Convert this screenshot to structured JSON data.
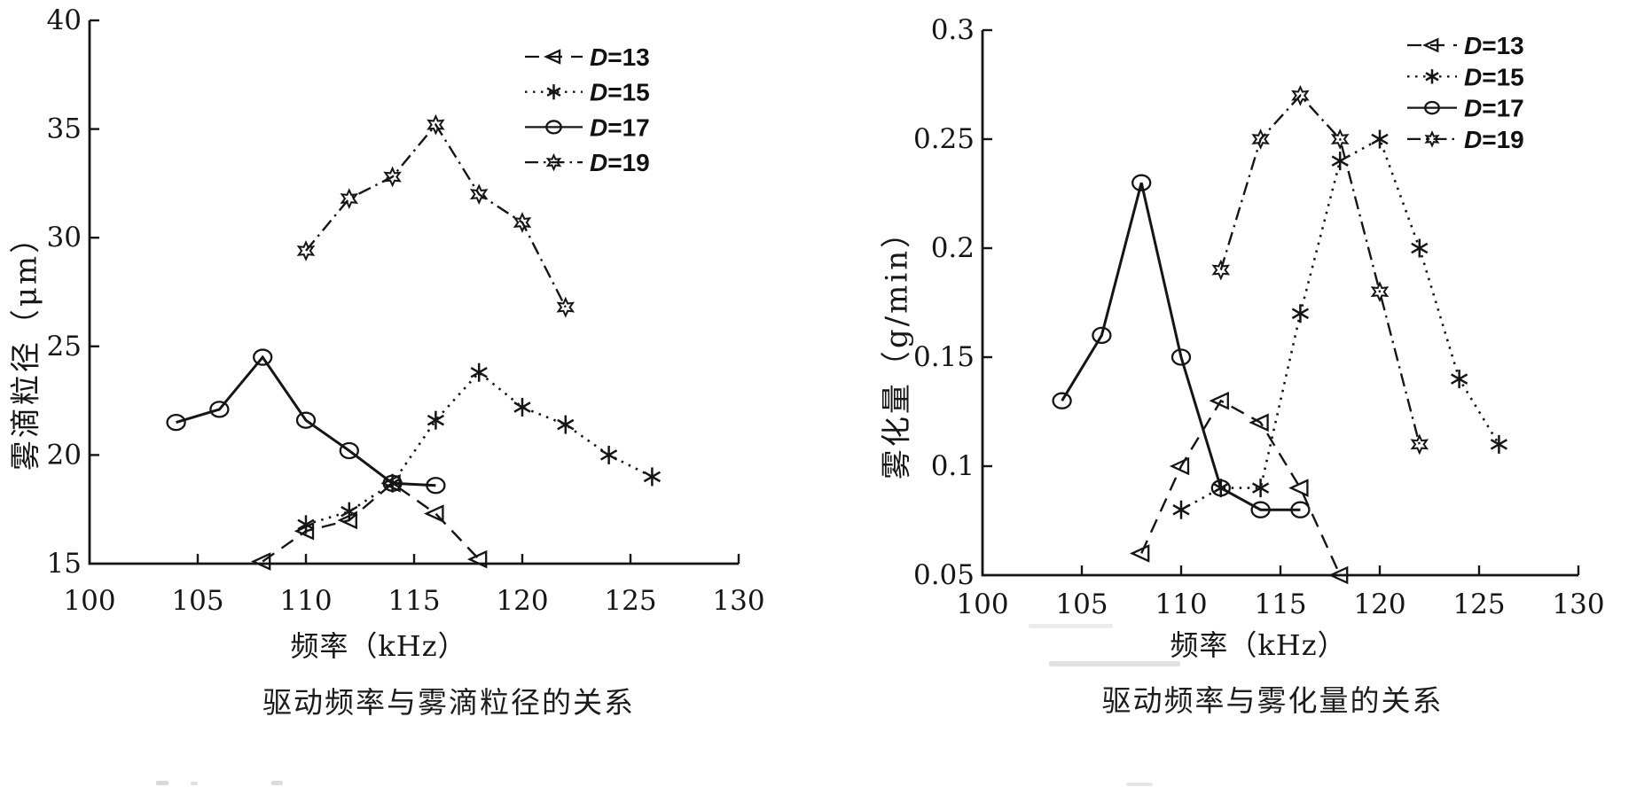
{
  "page": {
    "background": "#ffffff",
    "ink_color": "#151515"
  },
  "chart_data": [
    {
      "type": "line",
      "title": "驱动频率与雾滴粒径的关系",
      "xlabel": "频率（kHz）",
      "ylabel": "雾滴粒径（μm）",
      "xlim": [
        100,
        130
      ],
      "ylim": [
        15,
        40
      ],
      "x_ticks": [
        "100",
        "105",
        "110",
        "115",
        "120",
        "125",
        "130"
      ],
      "y_ticks": [
        "15",
        "20",
        "25",
        "30",
        "35",
        "40"
      ],
      "grid": false,
      "legend_position": "top-right-inside",
      "series": [
        {
          "name": "D=13",
          "line": "dashed",
          "marker": "triangle-left",
          "x": [
            108,
            110,
            112,
            114,
            116,
            118
          ],
          "y": [
            15.1,
            16.5,
            17.0,
            18.7,
            17.3,
            15.2
          ]
        },
        {
          "name": "D=15",
          "line": "dotted",
          "marker": "asterisk",
          "x": [
            110,
            112,
            114,
            116,
            118,
            120,
            122,
            124,
            126
          ],
          "y": [
            16.8,
            17.4,
            18.7,
            21.6,
            23.8,
            22.2,
            21.4,
            20.0,
            19.0
          ]
        },
        {
          "name": "D=17",
          "line": "solid",
          "marker": "circle",
          "x": [
            104,
            106,
            108,
            110,
            112,
            114,
            116
          ],
          "y": [
            21.5,
            22.1,
            24.5,
            21.6,
            20.2,
            18.7,
            18.6
          ]
        },
        {
          "name": "D=19",
          "line": "dash-dot",
          "marker": "hexagram",
          "x": [
            110,
            112,
            114,
            116,
            118,
            120,
            122
          ],
          "y": [
            29.4,
            31.8,
            32.8,
            35.2,
            32.0,
            30.7,
            26.8
          ]
        }
      ]
    },
    {
      "type": "line",
      "title": "驱动频率与雾化量的关系",
      "xlabel": "频率（kHz）",
      "ylabel": "雾化量（g/min）",
      "xlim": [
        100,
        130
      ],
      "ylim": [
        0.05,
        0.3
      ],
      "x_ticks": [
        "100",
        "105",
        "110",
        "115",
        "120",
        "125",
        "130"
      ],
      "y_ticks": [
        "0.05",
        "0.1",
        "0.15",
        "0.2",
        "0.25",
        "0.3"
      ],
      "grid": false,
      "legend_position": "top-right-inside",
      "series": [
        {
          "name": "D=13",
          "line": "dashed",
          "marker": "triangle-left",
          "x": [
            108,
            110,
            112,
            114,
            116,
            118
          ],
          "y": [
            0.06,
            0.1,
            0.13,
            0.12,
            0.09,
            0.05
          ]
        },
        {
          "name": "D=15",
          "line": "dotted",
          "marker": "asterisk",
          "x": [
            110,
            112,
            114,
            116,
            118,
            120,
            122,
            124,
            126
          ],
          "y": [
            0.08,
            0.09,
            0.09,
            0.17,
            0.24,
            0.25,
            0.2,
            0.14,
            0.11
          ]
        },
        {
          "name": "D=17",
          "line": "solid",
          "marker": "circle",
          "x": [
            104,
            106,
            108,
            110,
            112,
            114,
            116
          ],
          "y": [
            0.13,
            0.16,
            0.23,
            0.15,
            0.09,
            0.08,
            0.08
          ]
        },
        {
          "name": "D=19",
          "line": "dash-dot",
          "marker": "hexagram",
          "x": [
            112,
            114,
            116,
            118,
            120,
            122
          ],
          "y": [
            0.19,
            0.25,
            0.27,
            0.25,
            0.18,
            0.11
          ]
        }
      ]
    }
  ]
}
